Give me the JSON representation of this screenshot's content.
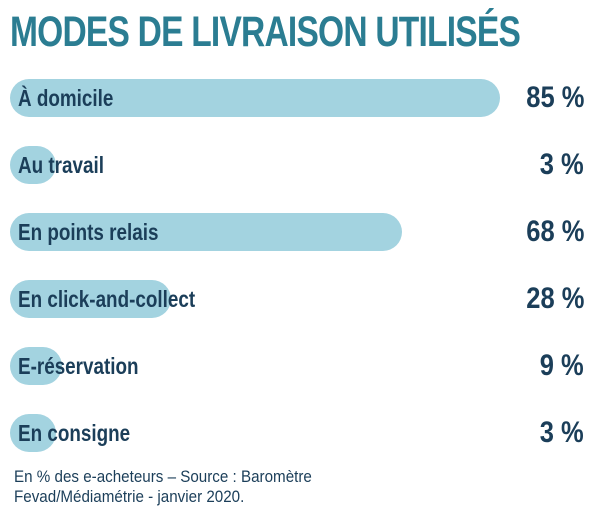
{
  "chart_data": {
    "type": "bar",
    "orientation": "horizontal",
    "title": "MODES DE LIVRAISON UTILISÉS",
    "categories": [
      "À domicile",
      "Au travail",
      "En points relais",
      "En click-and-collect",
      "E-réservation",
      "En consigne"
    ],
    "values": [
      85,
      3,
      68,
      28,
      9,
      3
    ],
    "value_labels": [
      "85 %",
      "3 %",
      "68 %",
      "28 %",
      "9 %",
      "3 %"
    ],
    "unit": "%",
    "xlim": [
      0,
      85
    ],
    "grid": false,
    "legend": "none",
    "bar_color": "#a3d3e0",
    "title_color": "#2b7d92",
    "text_color": "#1b3e59"
  },
  "footer": {
    "source": "En % des e-acheteurs – Source : Baromètre Fevad/Médiamétrie - janvier 2020."
  }
}
